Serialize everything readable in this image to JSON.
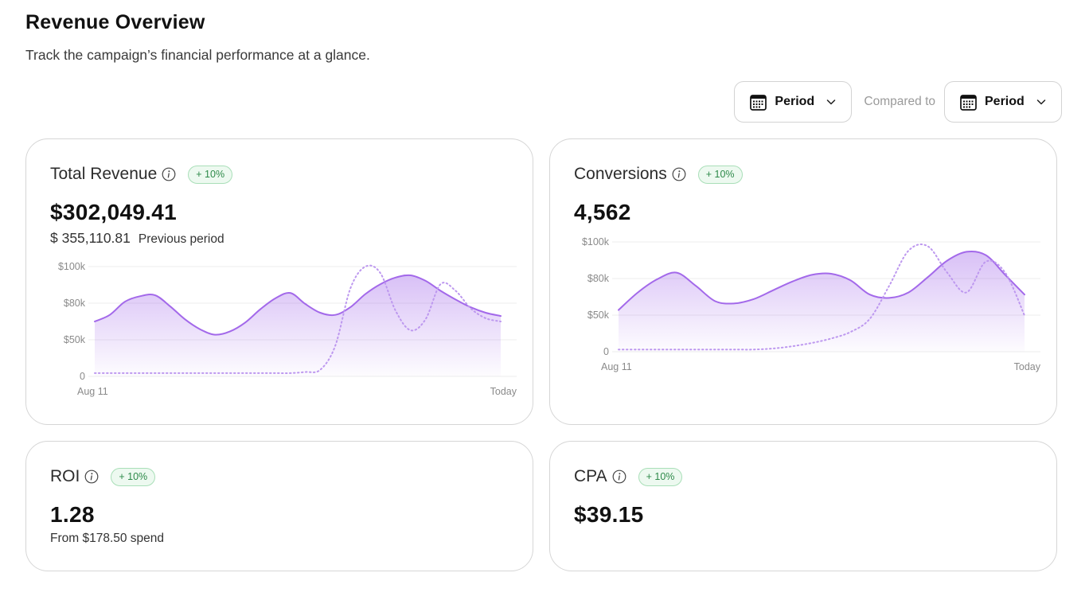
{
  "header": {
    "title": "Revenue Overview",
    "subtitle": "Track the campaign’s financial performance at a glance."
  },
  "toolbar": {
    "period_label": "Period",
    "compared_label": "Compared to",
    "compare_period_label": "Period"
  },
  "colors": {
    "accent": "#a369ea",
    "badge_text": "#2e8a4a",
    "badge_bg": "#edf9f0"
  },
  "cards": {
    "revenue": {
      "title": "Total Revenue",
      "badge": "+ 10%",
      "value": "$302,049.41",
      "previous_amount": "$ 355,110.81",
      "previous_label": "Previous period"
    },
    "conversions": {
      "title": "Conversions",
      "badge": "+ 10%",
      "value": "4,562"
    },
    "roi": {
      "title": "ROI",
      "badge": "+ 10%",
      "value": "1.28",
      "sub": "From $178.50 spend"
    },
    "cpa": {
      "title": "CPA",
      "badge": "+ 10%",
      "value": "$39.15"
    }
  },
  "chart_data": [
    {
      "type": "area",
      "y_ticks": [
        "$100k",
        "$80k",
        "$50k",
        "0"
      ],
      "x_labels": [
        "Aug 11",
        "Today"
      ],
      "ylim": [
        0,
        100
      ],
      "grid": true,
      "series": [
        {
          "values": [
            50,
            56,
            68,
            73,
            74,
            64,
            52,
            43,
            38,
            41,
            49,
            61,
            71,
            76,
            66,
            58,
            56,
            63,
            75,
            84,
            90,
            92,
            87,
            78,
            70,
            63,
            58,
            55
          ]
        },
        {
          "values": [
            3,
            3,
            3,
            3,
            3,
            3,
            3,
            3,
            3,
            3,
            3,
            3,
            3,
            3,
            4,
            6,
            28,
            80,
            100,
            94,
            60,
            42,
            52,
            84,
            78,
            62,
            53,
            50
          ]
        }
      ]
    },
    {
      "type": "area",
      "y_ticks": [
        "$100k",
        "$80k",
        "$50k",
        "0"
      ],
      "x_labels": [
        "Aug 11",
        "Today"
      ],
      "ylim": [
        0,
        100
      ],
      "grid": true,
      "series": [
        {
          "values": [
            38,
            54,
            66,
            72,
            60,
            46,
            44,
            48,
            56,
            64,
            70,
            71,
            65,
            52,
            49,
            54,
            68,
            83,
            91,
            88,
            70,
            52
          ]
        },
        {
          "values": [
            2,
            2,
            2,
            2,
            2,
            2,
            2,
            2,
            3,
            5,
            8,
            12,
            18,
            30,
            60,
            92,
            96,
            72,
            54,
            82,
            72,
            33
          ]
        }
      ]
    }
  ]
}
